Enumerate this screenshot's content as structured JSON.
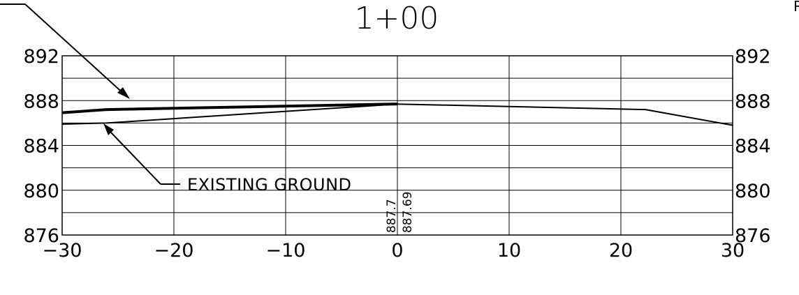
{
  "chart_data": {
    "type": "line",
    "title": "1+00",
    "xlim": [
      -30,
      30
    ],
    "ylim": [
      876,
      892
    ],
    "x_ticks": [
      -30,
      -20,
      -10,
      0,
      10,
      20,
      30
    ],
    "x_tick_labels": [
      "−30",
      "−20",
      "−10",
      "0",
      "10",
      "20",
      "30"
    ],
    "y_ticks": [
      876,
      880,
      884,
      888,
      892
    ],
    "y_tick_labels": [
      "876",
      "880",
      "884",
      "888",
      "892"
    ],
    "grid": true,
    "series": [
      {
        "name": "",
        "style": "thick",
        "points": [
          [
            -30,
            886.92
          ],
          [
            -26,
            887.2
          ],
          [
            0,
            887.7
          ]
        ]
      },
      {
        "name": "EXISTING GROUND",
        "style": "thin",
        "points": [
          [
            -30,
            885.9
          ],
          [
            -26,
            886.0
          ],
          [
            0,
            887.69
          ],
          [
            22.2,
            887.2
          ],
          [
            30,
            885.8
          ]
        ]
      }
    ],
    "annotations": {
      "callout_label": "EXISTING GROUND",
      "centerline_values": [
        "887.7",
        "887.69"
      ],
      "right_edge_label": "R"
    }
  }
}
